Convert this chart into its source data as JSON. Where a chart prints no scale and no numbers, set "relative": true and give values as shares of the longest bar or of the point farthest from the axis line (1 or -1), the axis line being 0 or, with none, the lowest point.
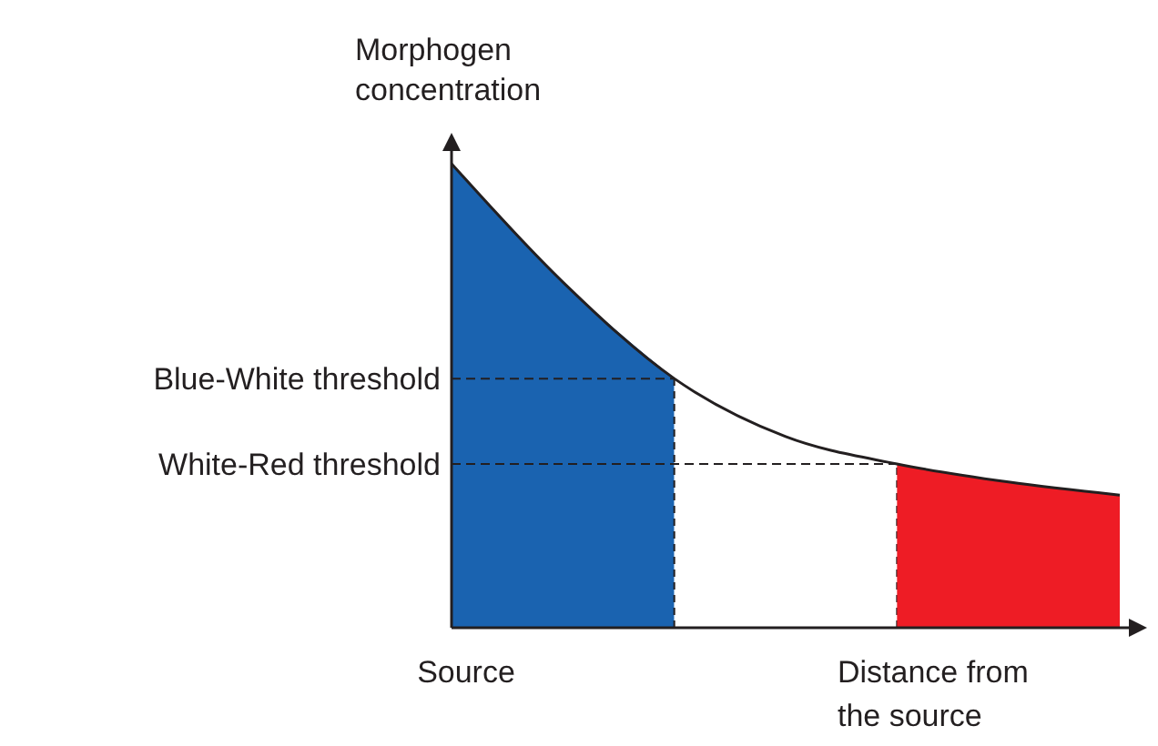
{
  "chart_data": {
    "type": "area",
    "relative": true,
    "xlabel": "Distance from the source",
    "ylabel": "Morphogen concentration",
    "categories": [
      null,
      null,
      null,
      null,
      null,
      null,
      null
    ],
    "annotations": [
      "Source"
    ],
    "series": [
      {
        "type": "area",
        "color": "#1a63b0",
        "values": [
          1,
          0.745,
          0.537,
          null,
          null,
          null,
          null
        ]
      },
      {
        "type": "area",
        "color": "#ffffff",
        "values": [
          null,
          null,
          0.537,
          0.412,
          0.353,
          null,
          null
        ]
      },
      {
        "type": "area",
        "color": "#ee1c25",
        "values": [
          null,
          null,
          null,
          null,
          0.353,
          0.314,
          0.286
        ]
      },
      {
        "type": "line",
        "color": "#231f20",
        "values": [
          1,
          0.745,
          0.537,
          0.412,
          0.353,
          0.314,
          0.286
        ]
      }
    ],
    "ref_lines": [
      {
        "axis": "y",
        "value": 0.537,
        "label": "Blue-White threshold",
        "line_style": "dashed"
      },
      {
        "axis": "y",
        "value": 0.353,
        "label": "White-Red threshold",
        "line_style": "dashed"
      }
    ]
  }
}
